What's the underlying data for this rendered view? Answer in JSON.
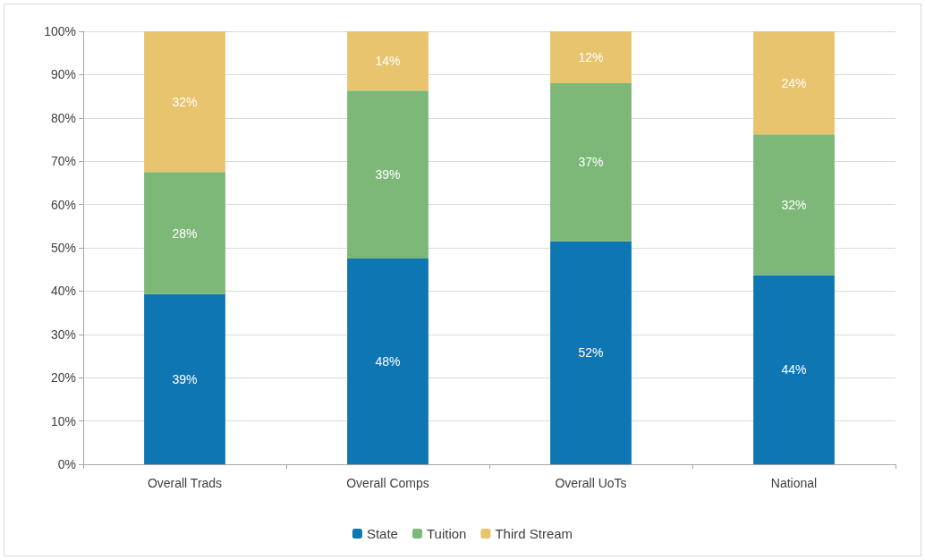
{
  "chart_data": {
    "type": "bar",
    "stacked": true,
    "categories": [
      "Overall Trads",
      "Overall Comps",
      "Overall UoTs",
      "National"
    ],
    "series": [
      {
        "name": "State",
        "color": "#0e76b3",
        "values": [
          39.3,
          47.5,
          51.5,
          43.7
        ],
        "value_labels": [
          "39%",
          "48%",
          "52%",
          "44%"
        ]
      },
      {
        "name": "Tuition",
        "color": "#7db879",
        "values": [
          28.2,
          38.8,
          36.5,
          32.5
        ],
        "value_labels": [
          "28%",
          "39%",
          "37%",
          "32%"
        ]
      },
      {
        "name": "Third Stream",
        "color": "#e9c46e",
        "values": [
          32.5,
          13.7,
          12,
          23.8
        ],
        "value_labels": [
          "32%",
          "14%",
          "12%",
          "24%"
        ]
      }
    ],
    "ylim": [
      0,
      100
    ],
    "yticks": [
      {
        "value": 0,
        "label": "0%"
      },
      {
        "value": 10,
        "label": "10%"
      },
      {
        "value": 20,
        "label": "20%"
      },
      {
        "value": 30,
        "label": "30%"
      },
      {
        "value": 40,
        "label": "40%"
      },
      {
        "value": 50,
        "label": "50%"
      },
      {
        "value": 60,
        "label": "60%"
      },
      {
        "value": 70,
        "label": "70%"
      },
      {
        "value": 80,
        "label": "80%"
      },
      {
        "value": 90,
        "label": "90%"
      },
      {
        "value": 100,
        "label": "100%"
      }
    ],
    "grid": "y",
    "legend": "bottom"
  }
}
